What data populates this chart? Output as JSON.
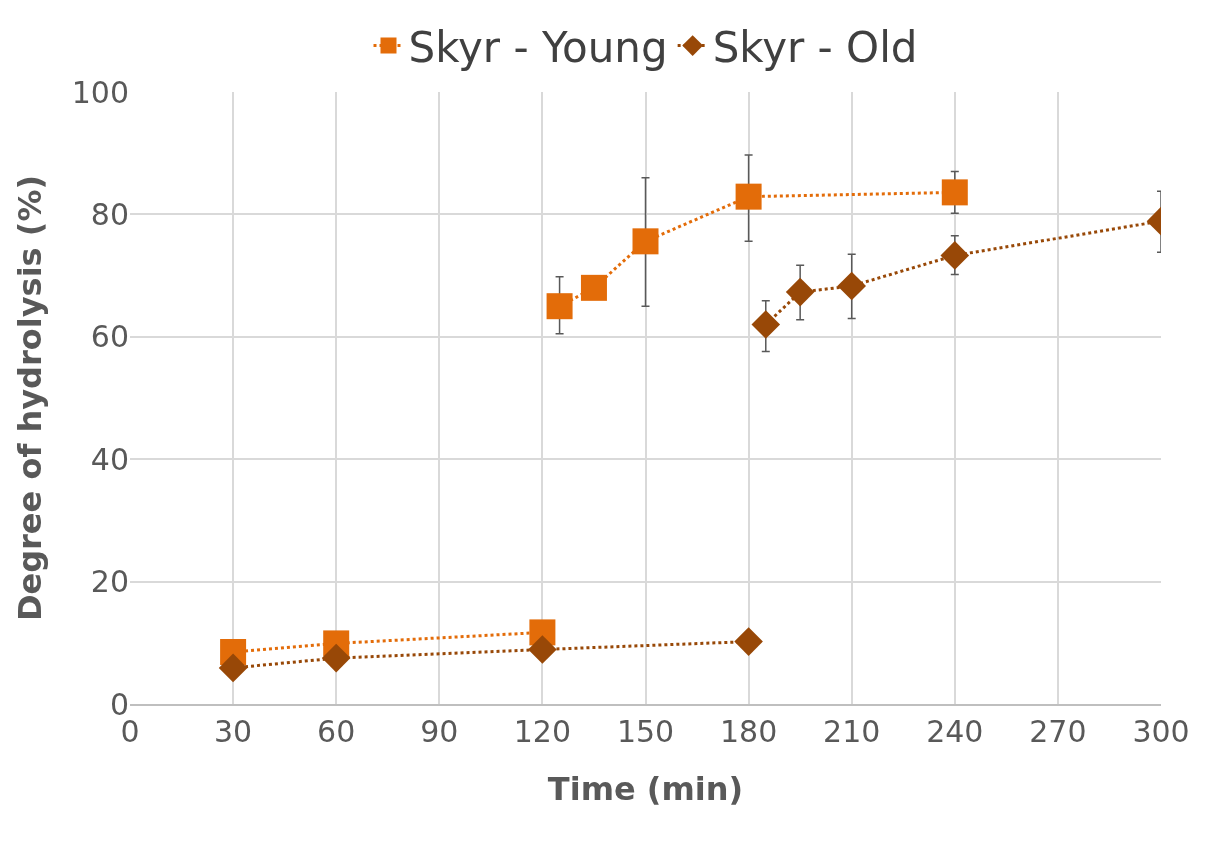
{
  "chart_data": {
    "type": "line",
    "xlabel": "Time (min)",
    "ylabel": "Degree of hydrolysis (%)",
    "xlim": [
      0,
      300
    ],
    "xticks": [
      0,
      30,
      60,
      90,
      120,
      150,
      180,
      210,
      240,
      270,
      300
    ],
    "ylim": [
      0,
      100
    ],
    "yticks": [
      0,
      20,
      40,
      60,
      80,
      100
    ],
    "grid": true,
    "legend": "top",
    "line_style": "dotted",
    "series": [
      {
        "name": "Skyr - Young",
        "color": "#e36c09",
        "marker": "square",
        "x": [
          30,
          60,
          120,
          null,
          125,
          135,
          150,
          180,
          240
        ],
        "values": [
          8.5,
          9.9,
          11.7,
          null,
          65,
          68,
          75.6,
          82.9,
          83.6
        ],
        "errors": [
          null,
          null,
          null,
          null,
          [
            60.5,
            69.8
          ],
          null,
          [
            65,
            86
          ],
          [
            75.6,
            89.7
          ],
          [
            80.2,
            87
          ]
        ]
      },
      {
        "name": "Skyr - Old",
        "color": "#984807",
        "marker": "diamond",
        "x": [
          30,
          60,
          120,
          180,
          null,
          185,
          195,
          210,
          240,
          300
        ],
        "values": [
          5.9,
          7.5,
          8.9,
          10.2,
          null,
          62,
          67.3,
          68.3,
          73.3,
          78.9
        ],
        "errors": [
          null,
          null,
          null,
          null,
          null,
          [
            57.6,
            65.9
          ],
          [
            62.8,
            71.7
          ],
          [
            63,
            73.5
          ],
          [
            70.2,
            76.5
          ],
          [
            73.8,
            83.8
          ]
        ]
      }
    ]
  }
}
